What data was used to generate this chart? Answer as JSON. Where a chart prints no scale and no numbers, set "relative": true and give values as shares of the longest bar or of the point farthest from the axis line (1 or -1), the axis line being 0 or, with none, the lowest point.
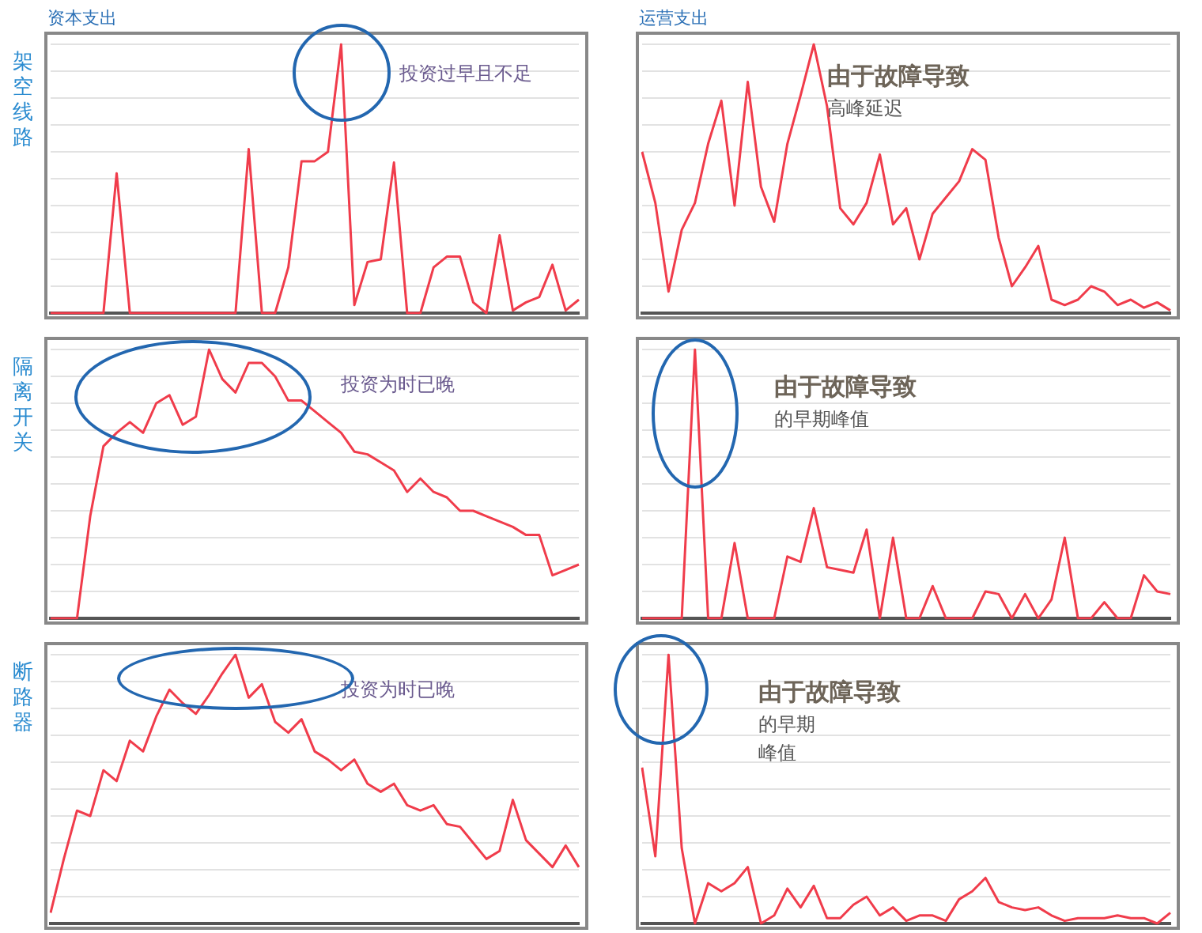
{
  "chart_data": [
    {
      "type": "line",
      "title": "资本支出",
      "ylabel": "架空线路",
      "annotations": [
        "投资过早且不足"
      ],
      "relative": true,
      "grid": "y",
      "color": "#f03c4b",
      "categories": [
        null,
        null,
        null,
        null,
        null,
        null,
        null,
        null,
        null,
        null,
        null,
        null,
        null,
        null,
        null,
        null,
        null,
        null,
        null,
        null,
        null,
        null,
        null,
        null,
        null,
        null,
        null,
        null,
        null,
        null,
        null,
        null,
        null,
        null,
        null,
        null,
        null,
        null,
        null,
        null,
        null
      ],
      "values": [
        0,
        0,
        0,
        0,
        0,
        0.52,
        0,
        0,
        0,
        0,
        0,
        0,
        0,
        0,
        0,
        0.61,
        0,
        0,
        0.17,
        0.565,
        0.565,
        0.6,
        1,
        0.03,
        0.19,
        0.2,
        0.56,
        0,
        0,
        0.17,
        0.21,
        0.21,
        0.04,
        0,
        0.29,
        0.01,
        0.04,
        0.06,
        0.18,
        0.01,
        0.05
      ]
    },
    {
      "type": "line",
      "title": "运营支出",
      "annotations": [
        "由于故障导致",
        "高峰延迟"
      ],
      "relative": true,
      "grid": "y",
      "color": "#f03c4b",
      "categories": [
        null,
        null,
        null,
        null,
        null,
        null,
        null,
        null,
        null,
        null,
        null,
        null,
        null,
        null,
        null,
        null,
        null,
        null,
        null,
        null,
        null,
        null,
        null,
        null,
        null,
        null,
        null,
        null,
        null,
        null,
        null,
        null,
        null,
        null,
        null,
        null,
        null,
        null,
        null,
        null,
        null
      ],
      "values": [
        0.6,
        0.41,
        0.08,
        0.31,
        0.41,
        0.63,
        0.79,
        0.4,
        0.86,
        0.47,
        0.34,
        0.63,
        0.81,
        1,
        0.77,
        0.39,
        0.33,
        0.41,
        0.59,
        0.33,
        0.39,
        0.2,
        0.37,
        0.43,
        0.49,
        0.61,
        0.57,
        0.28,
        0.1,
        0.17,
        0.25,
        0.05,
        0.03,
        0.05,
        0.1,
        0.08,
        0.03,
        0.05,
        0.02,
        0.04,
        0.01
      ]
    },
    {
      "type": "line",
      "ylabel": "隔离开关",
      "annotations": [
        "投资为时已晚"
      ],
      "relative": true,
      "grid": "y",
      "color": "#f03c4b",
      "categories": [
        null,
        null,
        null,
        null,
        null,
        null,
        null,
        null,
        null,
        null,
        null,
        null,
        null,
        null,
        null,
        null,
        null,
        null,
        null,
        null,
        null,
        null,
        null,
        null,
        null,
        null,
        null,
        null,
        null,
        null,
        null,
        null,
        null,
        null,
        null,
        null,
        null,
        null,
        null,
        null,
        null
      ],
      "values": [
        0,
        0,
        0,
        0.38,
        0.64,
        0.69,
        0.73,
        0.69,
        0.8,
        0.83,
        0.72,
        0.75,
        1,
        0.89,
        0.84,
        0.95,
        0.95,
        0.9,
        0.81,
        0.81,
        0.77,
        0.73,
        0.69,
        0.62,
        0.61,
        0.58,
        0.55,
        0.47,
        0.52,
        0.47,
        0.45,
        0.4,
        0.4,
        0.38,
        0.36,
        0.34,
        0.31,
        0.31,
        0.16,
        0.18,
        0.2
      ]
    },
    {
      "type": "line",
      "annotations": [
        "由于故障导致",
        "的早期峰值"
      ],
      "relative": true,
      "grid": "y",
      "color": "#f03c4b",
      "categories": [
        null,
        null,
        null,
        null,
        null,
        null,
        null,
        null,
        null,
        null,
        null,
        null,
        null,
        null,
        null,
        null,
        null,
        null,
        null,
        null,
        null,
        null,
        null,
        null,
        null,
        null,
        null,
        null,
        null,
        null,
        null,
        null,
        null,
        null,
        null,
        null,
        null,
        null,
        null,
        null,
        null
      ],
      "values": [
        0,
        0,
        0,
        0,
        1,
        0,
        0,
        0.28,
        0,
        0,
        0,
        0.23,
        0.21,
        0.41,
        0.19,
        0.18,
        0.17,
        0.33,
        0,
        0.3,
        0,
        0,
        0.12,
        0,
        0,
        0,
        0.1,
        0.09,
        0,
        0.09,
        0,
        0.07,
        0.3,
        0,
        0,
        0.06,
        0,
        0,
        0.16,
        0.1,
        0.09
      ]
    },
    {
      "type": "line",
      "ylabel": "断路器",
      "annotations": [
        "投资为时已晚"
      ],
      "relative": true,
      "grid": "y",
      "color": "#f03c4b",
      "categories": [
        null,
        null,
        null,
        null,
        null,
        null,
        null,
        null,
        null,
        null,
        null,
        null,
        null,
        null,
        null,
        null,
        null,
        null,
        null,
        null,
        null,
        null,
        null,
        null,
        null,
        null,
        null,
        null,
        null,
        null,
        null,
        null,
        null,
        null,
        null,
        null,
        null,
        null,
        null,
        null,
        null
      ],
      "values": [
        0.04,
        0.24,
        0.42,
        0.4,
        0.57,
        0.53,
        0.68,
        0.64,
        0.77,
        0.87,
        0.82,
        0.78,
        0.85,
        0.93,
        1,
        0.84,
        0.89,
        0.75,
        0.71,
        0.76,
        0.64,
        0.61,
        0.57,
        0.61,
        0.52,
        0.49,
        0.52,
        0.44,
        0.42,
        0.44,
        0.37,
        0.36,
        0.3,
        0.24,
        0.27,
        0.46,
        0.31,
        0.26,
        0.21,
        0.29,
        0.21
      ]
    },
    {
      "type": "line",
      "annotations": [
        "由于故障导致",
        "的早期",
        "峰值"
      ],
      "relative": true,
      "grid": "y",
      "color": "#f03c4b",
      "categories": [
        null,
        null,
        null,
        null,
        null,
        null,
        null,
        null,
        null,
        null,
        null,
        null,
        null,
        null,
        null,
        null,
        null,
        null,
        null,
        null,
        null,
        null,
        null,
        null,
        null,
        null,
        null,
        null,
        null,
        null,
        null,
        null,
        null,
        null,
        null,
        null,
        null,
        null,
        null,
        null,
        null
      ],
      "values": [
        0.58,
        0.25,
        1,
        0.28,
        0,
        0.15,
        0.12,
        0.15,
        0.21,
        0,
        0.03,
        0.13,
        0.06,
        0.14,
        0.02,
        0.02,
        0.07,
        0.1,
        0.03,
        0.06,
        0.01,
        0.03,
        0.03,
        0.01,
        0.09,
        0.12,
        0.17,
        0.08,
        0.06,
        0.05,
        0.06,
        0.03,
        0.01,
        0.02,
        0.02,
        0.02,
        0.03,
        0.02,
        0.02,
        0,
        0.04
      ]
    }
  ]
}
